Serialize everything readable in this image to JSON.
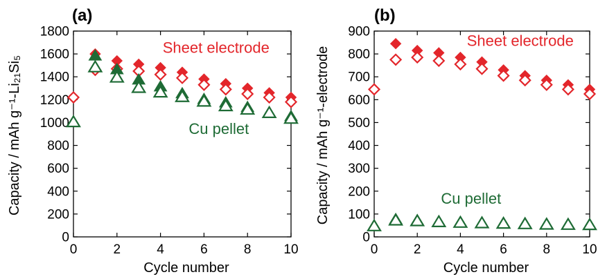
{
  "chart_data": [
    {
      "type": "scatter",
      "panel_label": "(a)",
      "xlabel": "Cycle number",
      "ylabel": "Capacity / mAh g⁻¹-Li₂₁Si₅",
      "xlim": [
        0,
        10
      ],
      "ylim": [
        0,
        1800
      ],
      "xticks": [
        0,
        2,
        4,
        6,
        8,
        10
      ],
      "yticks": [
        0,
        200,
        400,
        600,
        800,
        1000,
        1200,
        1400,
        1600,
        1800
      ],
      "grid": false,
      "annotations": [
        {
          "text": "Sheet electrode",
          "color": "#e3262b",
          "anchor_x": 4.1,
          "anchor_y": 1610
        },
        {
          "text": "Cu pellet",
          "color": "#1e6b35",
          "anchor_x": 5.3,
          "anchor_y": 900
        }
      ],
      "series": [
        {
          "marker": "diamond-filled",
          "color": "#e3262b",
          "x": [
            1,
            2,
            3,
            4,
            5,
            6,
            7,
            8,
            9,
            10
          ],
          "y": [
            1600,
            1540,
            1510,
            1480,
            1440,
            1380,
            1340,
            1300,
            1260,
            1220
          ]
        },
        {
          "marker": "diamond-open",
          "color": "#e3262b",
          "x": [
            0,
            1,
            2,
            3,
            4,
            5,
            6,
            7,
            8,
            9,
            10
          ],
          "y": [
            1220,
            1460,
            1470,
            1450,
            1420,
            1390,
            1330,
            1290,
            1250,
            1220,
            1180
          ]
        },
        {
          "marker": "triangle-filled",
          "color": "#1e6b35",
          "x": [
            1,
            2,
            3,
            4,
            5,
            6,
            7,
            8,
            9,
            10
          ],
          "y": [
            1580,
            1460,
            1370,
            1310,
            1250,
            1200,
            1170,
            1130,
            1080,
            1050
          ]
        },
        {
          "marker": "triangle-open",
          "color": "#1e6b35",
          "x": [
            0,
            1,
            2,
            3,
            4,
            5,
            6,
            7,
            8,
            9,
            10
          ],
          "y": [
            1000,
            1480,
            1390,
            1300,
            1260,
            1220,
            1180,
            1140,
            1110,
            1080,
            1030
          ]
        }
      ]
    },
    {
      "type": "scatter",
      "panel_label": "(b)",
      "xlabel": "Cycle number",
      "ylabel": "Capacity / mAh g⁻¹-electrode",
      "xlim": [
        0,
        10
      ],
      "ylim": [
        0,
        900
      ],
      "xticks": [
        0,
        2,
        4,
        6,
        8,
        10
      ],
      "yticks": [
        0,
        100,
        200,
        300,
        400,
        500,
        600,
        700,
        800,
        900
      ],
      "grid": false,
      "annotations": [
        {
          "text": "Sheet electrode",
          "color": "#e3262b",
          "anchor_x": 4.3,
          "anchor_y": 835
        },
        {
          "text": "Cu pellet",
          "color": "#1e6b35",
          "anchor_x": 3.1,
          "anchor_y": 145
        }
      ],
      "series": [
        {
          "marker": "diamond-filled",
          "color": "#e3262b",
          "x": [
            1,
            2,
            3,
            4,
            5,
            6,
            7,
            8,
            9,
            10
          ],
          "y": [
            845,
            815,
            805,
            785,
            765,
            730,
            705,
            685,
            665,
            645
          ]
        },
        {
          "marker": "diamond-open",
          "color": "#e3262b",
          "x": [
            0,
            1,
            2,
            3,
            4,
            5,
            6,
            7,
            8,
            9,
            10
          ],
          "y": [
            645,
            775,
            785,
            770,
            755,
            735,
            705,
            685,
            665,
            645,
            625
          ]
        },
        {
          "marker": "triangle-filled",
          "color": "#1e6b35",
          "x": [
            1,
            2,
            3,
            4,
            5,
            6,
            7,
            8,
            9,
            10
          ],
          "y": [
            75,
            70,
            65,
            62,
            60,
            58,
            57,
            55,
            53,
            52
          ]
        },
        {
          "marker": "triangle-open",
          "color": "#1e6b35",
          "x": [
            0,
            1,
            2,
            3,
            4,
            5,
            6,
            7,
            8,
            9,
            10
          ],
          "y": [
            45,
            70,
            67,
            63,
            60,
            58,
            56,
            54,
            52,
            51,
            50
          ]
        }
      ]
    }
  ]
}
